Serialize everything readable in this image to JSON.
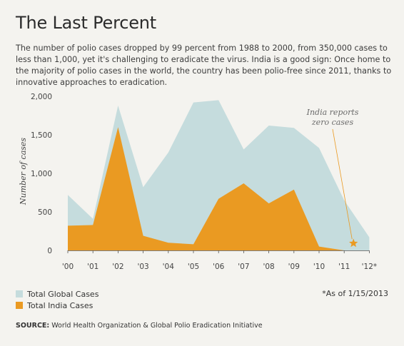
{
  "header": {
    "title": "The Last Percent",
    "subtitle": "The number of polio cases dropped by 99 percent from 1988 to 2000, from 350,000 cases to less than 1,000, yet it's challenging to eradicate the virus. India is a good sign: Once home to the majority of polio cases in the world, the country has been polio-free since 2011, thanks to innovative approaches to eradication."
  },
  "colors": {
    "global": "#c5dcdd",
    "india": "#ea9a22",
    "star": "#ea9a22",
    "annotation_line": "#ea9a22"
  },
  "chart_data": {
    "type": "area",
    "title": "The Last Percent",
    "ylabel": "Number of cases",
    "xlabel": "",
    "ylim": [
      0,
      2000
    ],
    "yticks": [
      0,
      500,
      1000,
      1500,
      2000
    ],
    "ytick_labels": [
      "0",
      "500",
      "1,000",
      "1,500",
      "2,000"
    ],
    "categories": [
      "'00",
      "'01",
      "'02",
      "'03",
      "'04",
      "'05",
      "'06",
      "'07",
      "'08",
      "'09",
      "'10",
      "'11",
      "'12*"
    ],
    "grid": false,
    "legend_position": "bottom-left",
    "series": [
      {
        "name": "Total Global Cases",
        "color": "#c5dcdd",
        "x": [
          "'00",
          "'01",
          "'01",
          "'02",
          "'03",
          "'04",
          "'05",
          "'06",
          "'07",
          "'08",
          "'09",
          "'10",
          "'11",
          "'12*"
        ],
        "values": [
          720,
          410,
          410,
          1880,
          820,
          1270,
          1920,
          1950,
          1310,
          1620,
          1590,
          1330,
          650,
          170
        ]
      },
      {
        "name": "Total India Cases",
        "color": "#ea9a22",
        "x": [
          "'00",
          "'01",
          "'02",
          "'03",
          "'04",
          "'05",
          "'06",
          "'07",
          "'08",
          "'09",
          "'10",
          "'11"
        ],
        "values": [
          320,
          330,
          1600,
          190,
          100,
          80,
          670,
          870,
          610,
          790,
          50,
          0
        ]
      }
    ],
    "annotation": {
      "line1": "India reports",
      "line2": "zero cases",
      "marker": "star",
      "marker_x": "'11"
    }
  },
  "legend": [
    {
      "label": "Total Global Cases"
    },
    {
      "label": "Total India Cases"
    }
  ],
  "footnote": "*As of 1/15/2013",
  "source": {
    "label": "SOURCE:",
    "text": "World Health Organization & Global Polio Eradication Initiative"
  }
}
